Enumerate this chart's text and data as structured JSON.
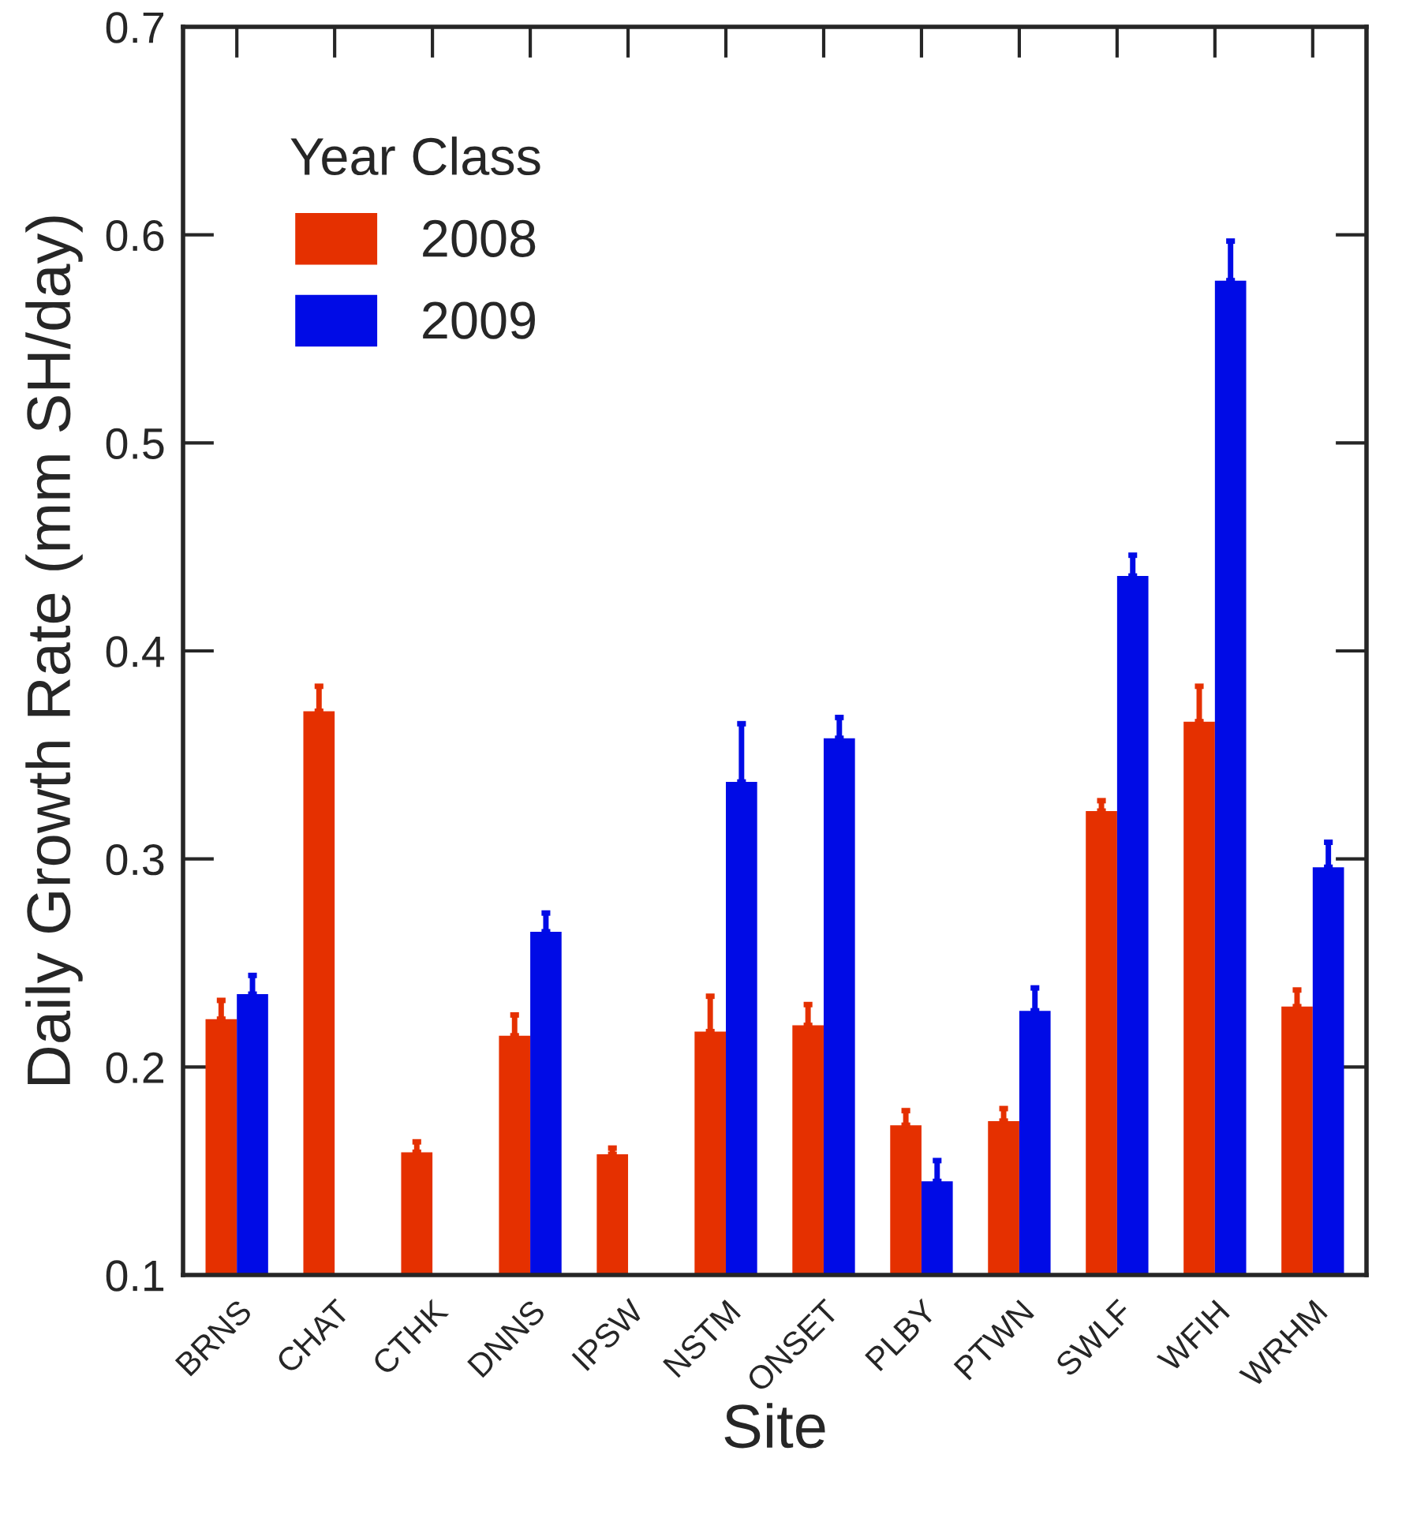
{
  "chart_data": {
    "type": "bar",
    "xlabel": "Site",
    "ylabel": "Daily Growth Rate (mm SH/day)",
    "legend_title": "Year Class",
    "categories": [
      "BRNS",
      "CHAT",
      "CTHK",
      "DNNS",
      "IPSW",
      "NSTM",
      "ONSET",
      "PLBY",
      "PTWN",
      "SWLF",
      "WFIH",
      "WRHM"
    ],
    "series": [
      {
        "name": "2008",
        "color": "#e53000",
        "values": [
          0.223,
          0.371,
          0.159,
          0.215,
          0.158,
          0.217,
          0.22,
          0.172,
          0.174,
          0.323,
          0.366,
          0.229
        ],
        "errors": [
          [
            0.223,
            0.232
          ],
          [
            0.371,
            0.383
          ],
          [
            0.159,
            0.164
          ],
          [
            0.215,
            0.225
          ],
          [
            0.158,
            0.161
          ],
          [
            0.217,
            0.234
          ],
          [
            0.22,
            0.23
          ],
          [
            0.172,
            0.179
          ],
          [
            0.174,
            0.18
          ],
          [
            0.323,
            0.328
          ],
          [
            0.366,
            0.383
          ],
          [
            0.229,
            0.237
          ]
        ]
      },
      {
        "name": "2009",
        "color": "#000be6",
        "values": [
          0.235,
          null,
          null,
          0.265,
          null,
          0.337,
          0.358,
          0.145,
          0.227,
          0.436,
          0.578,
          0.296
        ],
        "errors": [
          [
            0.235,
            0.244
          ],
          null,
          null,
          [
            0.265,
            0.274
          ],
          null,
          [
            0.337,
            0.365
          ],
          [
            0.358,
            0.368
          ],
          [
            0.145,
            0.155
          ],
          [
            0.227,
            0.238
          ],
          [
            0.436,
            0.446
          ],
          [
            0.578,
            0.597
          ],
          [
            0.296,
            0.308
          ]
        ]
      }
    ],
    "ylim": [
      0.1,
      0.7
    ],
    "yticks": [
      0.1,
      0.2,
      0.3,
      0.4,
      0.5,
      0.6,
      0.7
    ],
    "legend": "top left"
  }
}
